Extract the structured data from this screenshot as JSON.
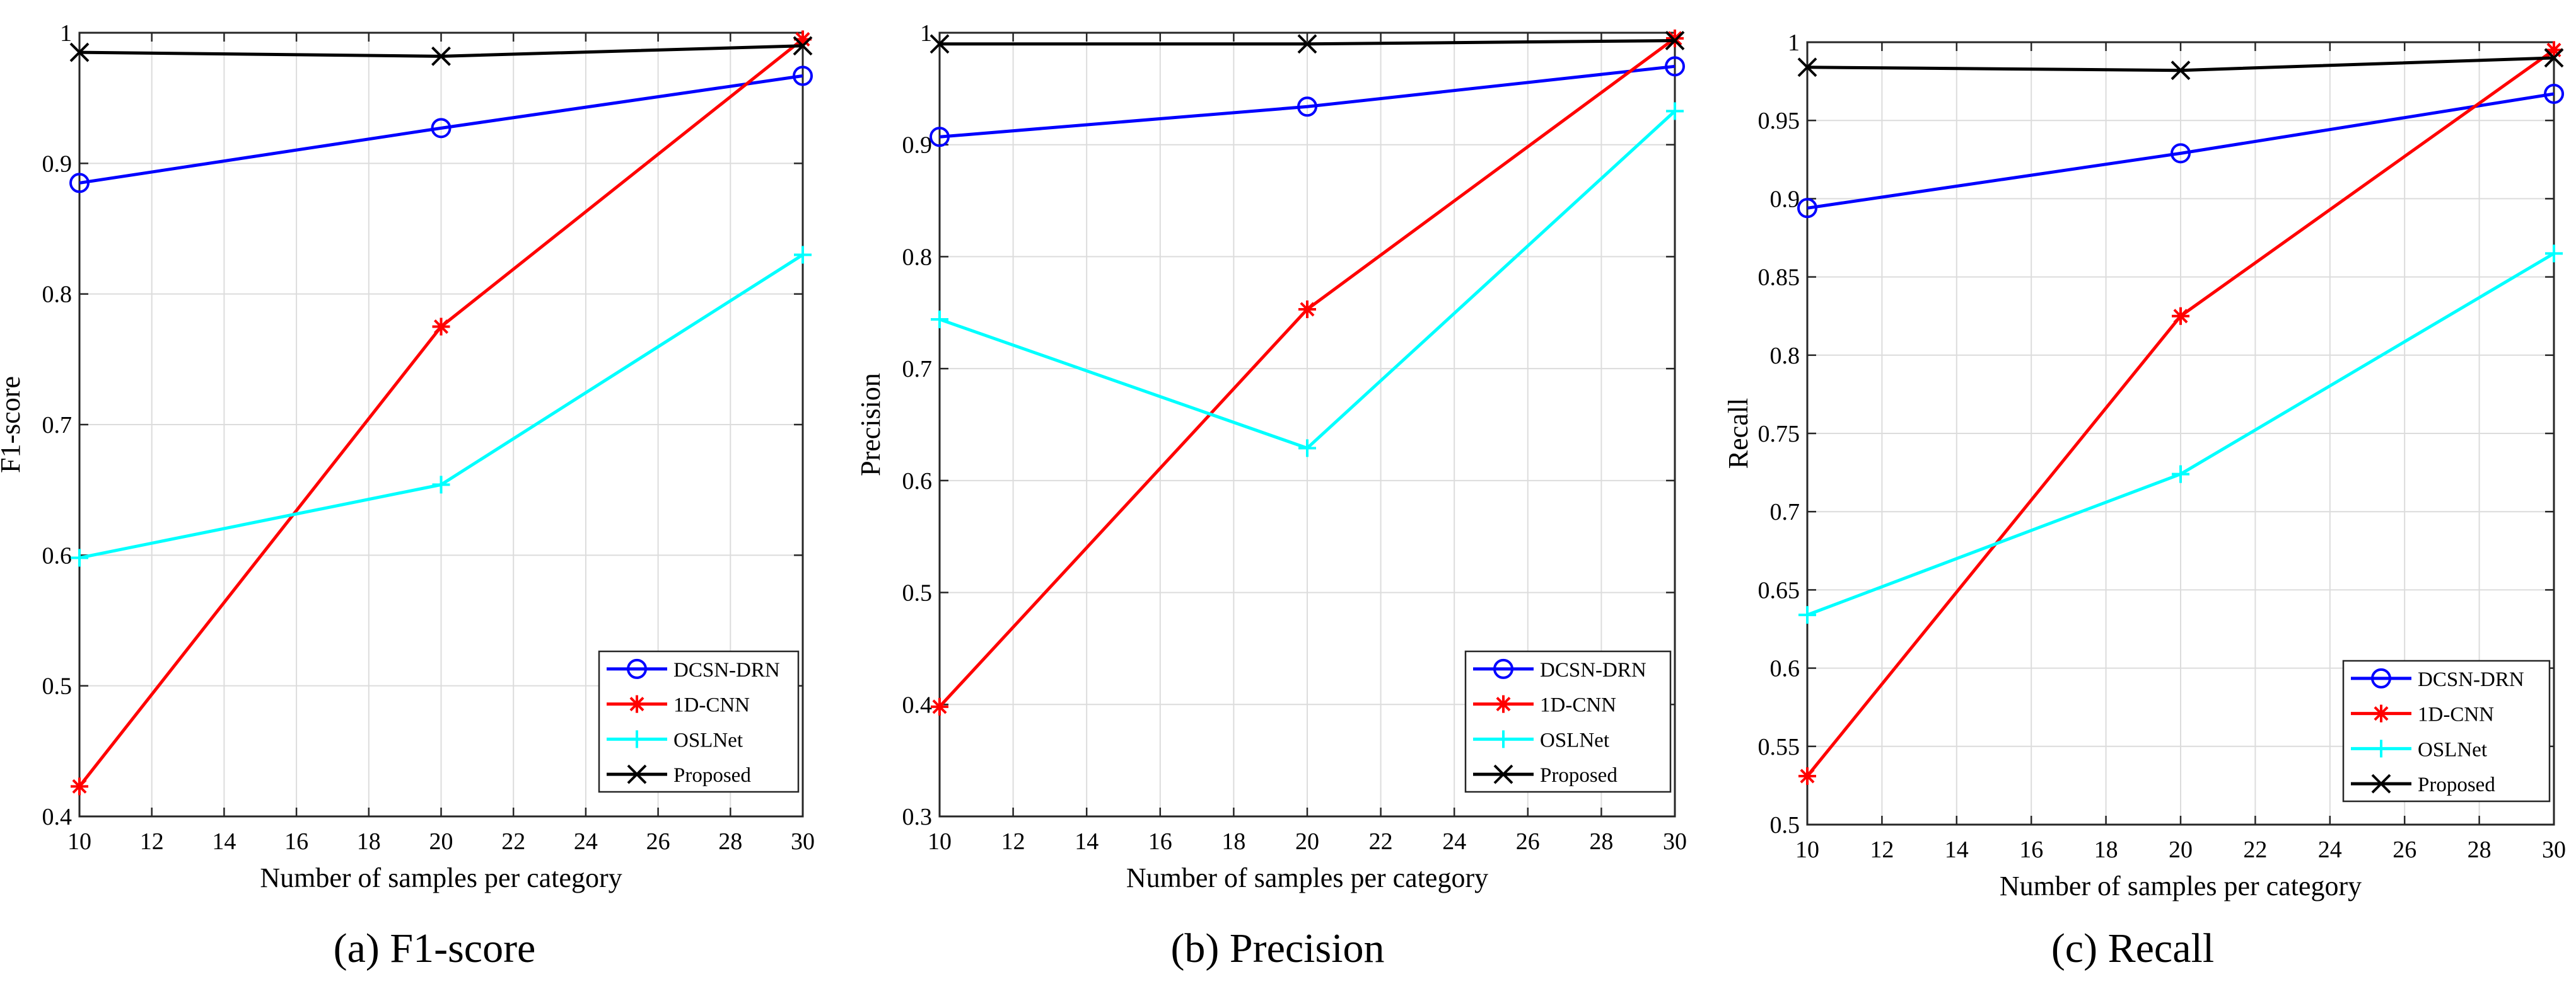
{
  "chart_data": [
    {
      "type": "line",
      "title": "",
      "caption": "(a) F1-score",
      "xlabel": "Number of samples per category",
      "ylabel": "F1-score",
      "x": [
        10,
        20,
        30
      ],
      "xlim": [
        10,
        30
      ],
      "ylim": [
        0.4,
        1.0
      ],
      "xticks": [
        10,
        12,
        14,
        16,
        18,
        20,
        22,
        24,
        26,
        28,
        30
      ],
      "yticks": [
        0.4,
        0.5,
        0.6,
        0.7,
        0.8,
        0.9,
        1
      ],
      "ytick_labels": [
        "0.4",
        "0.5",
        "0.6",
        "0.7",
        "0.8",
        "0.9",
        "1"
      ],
      "grid": true,
      "legend_position": "bottom-right",
      "series": [
        {
          "name": "DCSN-DRN",
          "color": "#0000ff",
          "marker": "circle",
          "values": [
            0.885,
            0.927,
            0.967
          ]
        },
        {
          "name": "1D-CNN",
          "color": "#ff0000",
          "marker": "asterisk",
          "values": [
            0.423,
            0.775,
            0.995
          ]
        },
        {
          "name": "OSLNet",
          "color": "#00ffff",
          "marker": "plus",
          "values": [
            0.598,
            0.654,
            0.83
          ]
        },
        {
          "name": "Proposed",
          "color": "#000000",
          "marker": "x",
          "values": [
            0.985,
            0.982,
            0.99
          ]
        }
      ]
    },
    {
      "type": "line",
      "title": "",
      "caption": "(b) Precision",
      "xlabel": "Number of samples per category",
      "ylabel": "Precision",
      "x": [
        10,
        20,
        30
      ],
      "xlim": [
        10,
        30
      ],
      "ylim": [
        0.3,
        1.0
      ],
      "xticks": [
        10,
        12,
        14,
        16,
        18,
        20,
        22,
        24,
        26,
        28,
        30
      ],
      "yticks": [
        0.3,
        0.4,
        0.5,
        0.6,
        0.7,
        0.8,
        0.9,
        1
      ],
      "ytick_labels": [
        "0.3",
        "0.4",
        "0.5",
        "0.6",
        "0.7",
        "0.8",
        "0.9",
        "1"
      ],
      "grid": true,
      "legend_position": "bottom-right",
      "series": [
        {
          "name": "DCSN-DRN",
          "color": "#0000ff",
          "marker": "circle",
          "values": [
            0.907,
            0.934,
            0.97
          ]
        },
        {
          "name": "1D-CNN",
          "color": "#ff0000",
          "marker": "asterisk",
          "values": [
            0.398,
            0.753,
            0.995
          ]
        },
        {
          "name": "OSLNet",
          "color": "#00ffff",
          "marker": "plus",
          "values": [
            0.744,
            0.629,
            0.93
          ]
        },
        {
          "name": "Proposed",
          "color": "#000000",
          "marker": "x",
          "values": [
            0.99,
            0.99,
            0.993
          ]
        }
      ]
    },
    {
      "type": "line",
      "title": "",
      "caption": "(c) Recall",
      "xlabel": "Number of samples per category",
      "ylabel": "Recall",
      "x": [
        10,
        20,
        30
      ],
      "xlim": [
        10,
        30
      ],
      "ylim": [
        0.5,
        1.0
      ],
      "xticks": [
        10,
        12,
        14,
        16,
        18,
        20,
        22,
        24,
        26,
        28,
        30
      ],
      "yticks": [
        0.5,
        0.55,
        0.6,
        0.65,
        0.7,
        0.75,
        0.8,
        0.85,
        0.9,
        0.95,
        1
      ],
      "ytick_labels": [
        "0.5",
        "0.55",
        "0.6",
        "0.65",
        "0.7",
        "0.75",
        "0.8",
        "0.85",
        "0.9",
        "0.95",
        "1"
      ],
      "grid": true,
      "legend_position": "bottom-right",
      "series": [
        {
          "name": "DCSN-DRN",
          "color": "#0000ff",
          "marker": "circle",
          "values": [
            0.894,
            0.929,
            0.967
          ]
        },
        {
          "name": "1D-CNN",
          "color": "#ff0000",
          "marker": "asterisk",
          "values": [
            0.531,
            0.825,
            0.995
          ]
        },
        {
          "name": "OSLNet",
          "color": "#00ffff",
          "marker": "plus",
          "values": [
            0.634,
            0.724,
            0.865
          ]
        },
        {
          "name": "Proposed",
          "color": "#000000",
          "marker": "x",
          "values": [
            0.984,
            0.982,
            0.99
          ]
        }
      ]
    }
  ]
}
